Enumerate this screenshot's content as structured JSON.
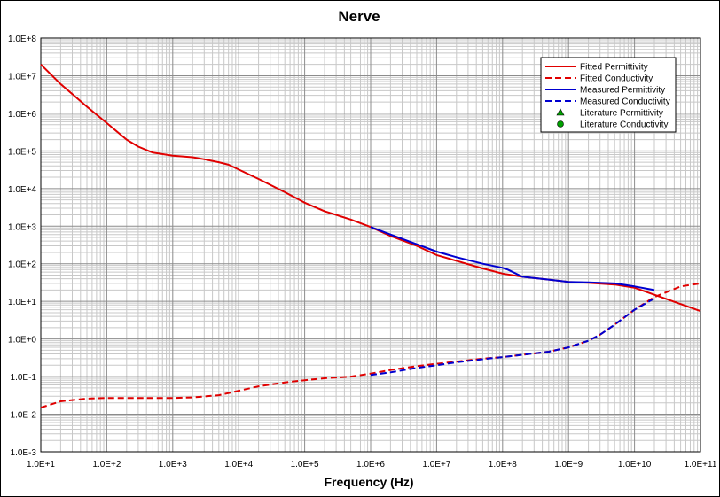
{
  "chart_data": {
    "type": "line",
    "title": "Nerve",
    "xlabel": "Frequency (Hz)",
    "ylabel": "",
    "x_scale": "log",
    "y_scale": "log",
    "xlim": [
      10,
      100000000000
    ],
    "ylim": [
      0.001,
      100000000
    ],
    "grid": true,
    "legend_position": "top-right",
    "x_tick_labels": [
      "1.0E+1",
      "1.0E+2",
      "1.0E+3",
      "1.0E+4",
      "1.0E+5",
      "1.0E+6",
      "1.0E+7",
      "1.0E+8",
      "1.0E+9",
      "1.0E+10",
      "1.0E+11"
    ],
    "y_tick_labels": [
      "1.0E-3",
      "1.0E-2",
      "1.0E-1",
      "1.0E+0",
      "1.0E+1",
      "1.0E+2",
      "1.0E+3",
      "1.0E+4",
      "1.0E+5",
      "1.0E+6",
      "1.0E+7",
      "1.0E+8"
    ],
    "legend": [
      {
        "label": "Fitted Permittivity",
        "color": "#e00000",
        "style": "solid",
        "marker": "none"
      },
      {
        "label": "Fitted Conductivity",
        "color": "#e00000",
        "style": "dashed",
        "marker": "none"
      },
      {
        "label": "Measured Permittivity",
        "color": "#0000d0",
        "style": "solid",
        "marker": "none"
      },
      {
        "label": "Measured Conductivity",
        "color": "#0000d0",
        "style": "dashed",
        "marker": "none"
      },
      {
        "label": "Literature Permittivity",
        "color": "#00a000",
        "style": "none",
        "marker": "triangle"
      },
      {
        "label": "Literature Conductivity",
        "color": "#00a000",
        "style": "none",
        "marker": "circle"
      }
    ],
    "series": [
      {
        "name": "Fitted Permittivity",
        "color": "#e00000",
        "dashed": false,
        "x": [
          10,
          20,
          50,
          100,
          200,
          300,
          500,
          1000,
          2000,
          3000,
          5000,
          7000,
          10000,
          20000,
          50000,
          100000,
          200000,
          500000,
          1000000,
          2000000,
          5000000,
          10000000,
          20000000,
          50000000,
          100000000,
          200000000,
          500000000,
          1000000000,
          2000000000,
          5000000000,
          10000000000,
          20000000000,
          50000000000,
          100000000000
        ],
        "y": [
          20000000,
          6000000,
          1500000,
          550000,
          200000,
          130000,
          90000,
          75000,
          68000,
          60000,
          50000,
          43000,
          32000,
          18000,
          8000,
          4200,
          2500,
          1500,
          950,
          550,
          300,
          170,
          120,
          75,
          55,
          45,
          38,
          33,
          31,
          28,
          23,
          15,
          8.5,
          5.5
        ]
      },
      {
        "name": "Fitted Conductivity",
        "color": "#e00000",
        "dashed": true,
        "x": [
          10,
          20,
          50,
          100,
          200,
          500,
          1000,
          2000,
          5000,
          10000,
          20000,
          50000,
          100000,
          200000,
          500000,
          1000000,
          2000000,
          5000000,
          10000000,
          20000000,
          50000000,
          100000000,
          200000000,
          500000000,
          1000000000,
          2000000000,
          3000000000,
          5000000000,
          10000000000,
          20000000000,
          50000000000,
          100000000000
        ],
        "y": [
          0.015,
          0.022,
          0.026,
          0.027,
          0.027,
          0.027,
          0.027,
          0.028,
          0.032,
          0.042,
          0.055,
          0.07,
          0.08,
          0.09,
          0.1,
          0.12,
          0.15,
          0.19,
          0.22,
          0.25,
          0.3,
          0.33,
          0.38,
          0.46,
          0.6,
          0.9,
          1.3,
          2.4,
          6,
          13,
          25,
          30
        ]
      },
      {
        "name": "Measured Permittivity",
        "color": "#0000d0",
        "dashed": false,
        "x": [
          1000000,
          2000000,
          5000000,
          10000000,
          20000000,
          50000000,
          100000000,
          120000000,
          200000000,
          500000000,
          1000000000,
          2000000000,
          5000000000,
          10000000000,
          20000000000
        ],
        "y": [
          950,
          600,
          330,
          210,
          150,
          100,
          78,
          70,
          45,
          38,
          33,
          32,
          30,
          25,
          20
        ]
      },
      {
        "name": "Measured Conductivity",
        "color": "#0000d0",
        "dashed": true,
        "x": [
          1000000,
          2000000,
          5000000,
          10000000,
          20000000,
          50000000,
          100000000,
          200000000,
          500000000,
          1000000000,
          2000000000,
          3000000000,
          5000000000,
          10000000000,
          20000000000
        ],
        "y": [
          0.11,
          0.13,
          0.17,
          0.2,
          0.24,
          0.29,
          0.33,
          0.38,
          0.46,
          0.6,
          0.9,
          1.3,
          2.4,
          6,
          12
        ]
      }
    ]
  }
}
